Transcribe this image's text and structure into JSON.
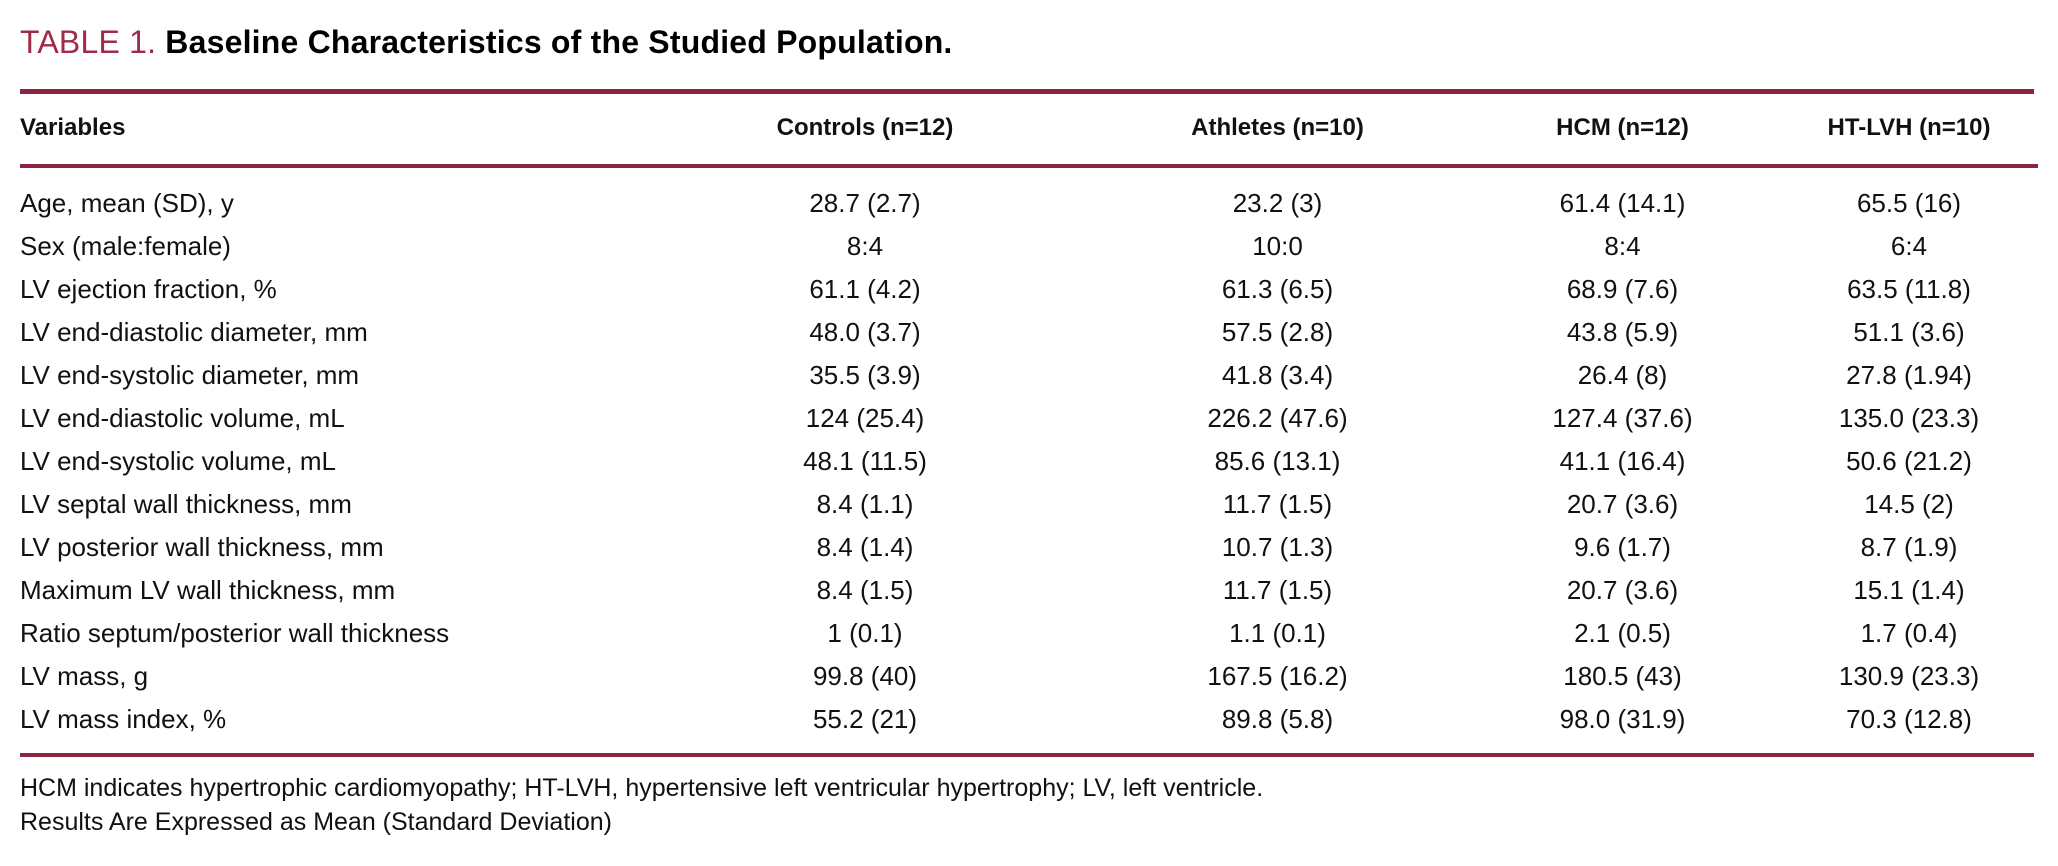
{
  "table": {
    "label": "TABLE 1.",
    "title": "Baseline Characteristics of the Studied Population.",
    "columns": [
      "Variables",
      "Controls (n=12)",
      "Athletes (n=10)",
      "HCM (n=12)",
      "HT-LVH (n=10)"
    ],
    "rows": [
      [
        "Age, mean (SD), y",
        "28.7 (2.7)",
        "23.2 (3)",
        "61.4 (14.1)",
        "65.5 (16)"
      ],
      [
        "Sex (male:female)",
        "8:4",
        "10:0",
        "8:4",
        "6:4"
      ],
      [
        "LV ejection fraction, %",
        "61.1 (4.2)",
        "61.3 (6.5)",
        "68.9 (7.6)",
        "63.5 (11.8)"
      ],
      [
        "LV end-diastolic diameter, mm",
        "48.0 (3.7)",
        "57.5 (2.8)",
        "43.8 (5.9)",
        "51.1 (3.6)"
      ],
      [
        "LV end-systolic diameter, mm",
        "35.5 (3.9)",
        "41.8 (3.4)",
        "26.4 (8)",
        "27.8 (1.94)"
      ],
      [
        "LV end-diastolic volume, mL",
        "124 (25.4)",
        "226.2 (47.6)",
        "127.4 (37.6)",
        "135.0 (23.3)"
      ],
      [
        "LV end-systolic volume, mL",
        "48.1 (11.5)",
        "85.6 (13.1)",
        "41.1 (16.4)",
        "50.6 (21.2)"
      ],
      [
        "LV septal wall thickness, mm",
        "8.4 (1.1)",
        "11.7 (1.5)",
        "20.7 (3.6)",
        "14.5 (2)"
      ],
      [
        "LV posterior wall thickness, mm",
        "8.4 (1.4)",
        "10.7 (1.3)",
        "9.6 (1.7)",
        "8.7 (1.9)"
      ],
      [
        "Maximum LV wall thickness, mm",
        "8.4 (1.5)",
        "11.7 (1.5)",
        "20.7 (3.6)",
        "15.1 (1.4)"
      ],
      [
        "Ratio septum/posterior wall thickness",
        "1 (0.1)",
        "1.1 (0.1)",
        "2.1 (0.5)",
        "1.7 (0.4)"
      ],
      [
        "LV mass, g",
        "99.8 (40)",
        "167.5 (16.2)",
        "180.5 (43)",
        "130.9 (23.3)"
      ],
      [
        "LV mass index, %",
        "55.2 (21)",
        "89.8 (5.8)",
        "98.0 (31.9)",
        "70.3 (12.8)"
      ]
    ],
    "footnotes": [
      "HCM indicates hypertrophic cardiomyopathy; HT-LVH, hypertensive left ventricular hypertrophy; LV, left ventricle.",
      "Results Are Expressed as Mean (Standard Deviation)"
    ],
    "colors": {
      "label": "#9e2b47",
      "rule": "#8c2640",
      "text": "#111111",
      "background": "#ffffff"
    }
  }
}
